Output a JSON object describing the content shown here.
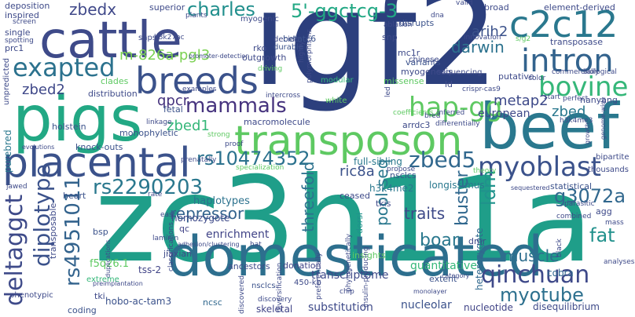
{
  "words": [
    {
      "id": "igf2",
      "text": "igf2",
      "color": "#2c3f7d"
    },
    {
      "id": "zc3h11a",
      "text": "zc3h11a",
      "color": "#1f9e89"
    },
    {
      "id": "domesticated",
      "text": "domesticated",
      "color": "#2d6f8e"
    },
    {
      "id": "beef",
      "text": "beef",
      "color": "#2a788e"
    },
    {
      "id": "pigs",
      "text": "pigs",
      "color": "#22a884"
    },
    {
      "id": "cattle",
      "text": "cattle",
      "color": "#3e4a89"
    },
    {
      "id": "transposon",
      "text": "transposon",
      "color": "#5ec962"
    },
    {
      "id": "placental",
      "text": "placental",
      "color": "#3b528b"
    },
    {
      "id": "breeds",
      "text": "breeds",
      "color": "#3b528b"
    },
    {
      "id": "c2c12",
      "text": "c2c12",
      "color": "#2a788e"
    },
    {
      "id": "intron",
      "text": "intron",
      "color": "#33638d"
    },
    {
      "id": "bovine",
      "text": "bovine",
      "color": "#35b779"
    },
    {
      "id": "myoblast",
      "text": "myoblast",
      "color": "#3b528b"
    },
    {
      "id": "qinchuan",
      "text": "qinchuan",
      "color": "#3e4989"
    },
    {
      "id": "myotube",
      "text": "myotube",
      "color": "#2d708e"
    },
    {
      "id": "exapted",
      "text": "exapted",
      "color": "#2c728e"
    },
    {
      "id": "mammals",
      "text": "mammals",
      "color": "#46337e"
    },
    {
      "id": "charles",
      "text": "charles",
      "color": "#218f8d"
    },
    {
      "id": "5ggctcg3",
      "text": "5'-ggctcg-3",
      "color": "#22a884"
    },
    {
      "id": "hapgg",
      "text": "hap-gg",
      "color": "#5ec962"
    },
    {
      "id": "rs10474352",
      "text": "rs10474352",
      "color": "#2c728e"
    },
    {
      "id": "rs2290203",
      "text": "rs2290203",
      "color": "#2a788e"
    },
    {
      "id": "zbed5",
      "text": "zbed5",
      "color": "#31688e"
    },
    {
      "id": "deltaggct",
      "text": "deltaggct",
      "color": "#3e4a89"
    },
    {
      "id": "diplotype",
      "text": "diplotype",
      "color": "#3b528b"
    },
    {
      "id": "rs4951011",
      "text": "rs4951011",
      "color": "#33638d"
    },
    {
      "id": "zbedx",
      "text": "zbedx",
      "color": "#3f4889"
    },
    {
      "id": "darwin",
      "text": "darwin",
      "color": "#2c728e"
    },
    {
      "id": "buster",
      "text": "buster",
      "color": "#31688e"
    },
    {
      "id": "ldm",
      "text": "ldm",
      "color": "#20928c"
    },
    {
      "id": "g3072a",
      "text": "g3072a",
      "color": "#31688e"
    },
    {
      "id": "fat",
      "text": "fat",
      "color": "#21918c"
    },
    {
      "id": "muscle",
      "text": "muscle",
      "color": "#2e6e8e"
    },
    {
      "id": "boar",
      "text": "boar",
      "color": "#2a788e"
    },
    {
      "id": "traits",
      "text": "traits",
      "color": "#3e4a89"
    },
    {
      "id": "repressor",
      "text": "repressor",
      "color": "#33638d"
    },
    {
      "id": "qpcr",
      "text": "qpcr",
      "color": "#46337e"
    },
    {
      "id": "zbed1",
      "text": "zbed1",
      "color": "#35b779"
    },
    {
      "id": "zbed2",
      "text": "zbed2",
      "color": "#3f4889"
    },
    {
      "id": "zbed",
      "text": "zbed",
      "color": "#2a788e"
    },
    {
      "id": "arih2",
      "text": "arih2",
      "color": "#3b528b"
    },
    {
      "id": "metap2",
      "text": "metap2",
      "color": "#3e4a89"
    },
    {
      "id": "ric8a",
      "text": "ric8a",
      "color": "#3b528b"
    },
    {
      "id": "poolseq",
      "text": "pool-seq",
      "color": "#2a788e"
    },
    {
      "id": "threefold",
      "text": "threefold",
      "color": "#2c728e"
    },
    {
      "id": "m826apgl3",
      "text": "m-826a-pgl3",
      "color": "#7ad151"
    },
    {
      "id": "european",
      "text": "european",
      "color": "#3e4989"
    },
    {
      "id": "enrichment",
      "text": "enrichment",
      "color": "#414487"
    },
    {
      "id": "haplotypes",
      "text": "haplotypes",
      "color": "#2c728e"
    },
    {
      "id": "transcriptome",
      "text": "transcriptome",
      "color": "#3e4a89"
    },
    {
      "id": "quantitative",
      "text": "quantitative",
      "color": "#35b779"
    },
    {
      "id": "substitution",
      "text": "substitution",
      "color": "#3e4a89"
    },
    {
      "id": "skeletal",
      "text": "skeletal",
      "color": "#414487"
    },
    {
      "id": "nucleolar",
      "text": "nucleolar",
      "color": "#3b528b"
    },
    {
      "id": "hoboactam3",
      "text": "hobo-ac-tam3",
      "color": "#3b528b"
    },
    {
      "id": "tss2",
      "text": "tss-2",
      "color": "#414487"
    },
    {
      "id": "f5q261",
      "text": "f5q26.1",
      "color": "#5ec962"
    },
    {
      "id": "homozygote",
      "text": "homozygote",
      "color": "#3e4a89"
    },
    {
      "id": "heterozygote",
      "text": "heterozygote",
      "color": "#31688e"
    },
    {
      "id": "longissimus",
      "text": "longissimus",
      "color": "#2a788e"
    },
    {
      "id": "fullsibling",
      "text": "full-sibling",
      "color": "#2a788e"
    },
    {
      "id": "h3k4me2",
      "text": "h3k4me2",
      "color": "#2a788e"
    },
    {
      "id": "nsclcs",
      "text": "nsclcs",
      "color": "#3b528b"
    },
    {
      "id": "disequilibrium",
      "text": "disequilibrium",
      "color": "#3e4a89"
    },
    {
      "id": "nucleotide",
      "text": "nucleotide",
      "color": "#414487"
    },
    {
      "id": "cobra",
      "text": "cobra",
      "color": "#31688e"
    },
    {
      "id": "extent",
      "text": "extent",
      "color": "#3b528b"
    },
    {
      "id": "jiaxian",
      "text": "jiaxian",
      "color": "#3e4a89"
    },
    {
      "id": "ancestors",
      "text": "ancestors",
      "color": "#3e4a89"
    },
    {
      "id": "donation",
      "text": "donation",
      "color": "#414487"
    },
    {
      "id": "ncsc",
      "text": "ncsc",
      "color": "#31688e"
    },
    {
      "id": "tki",
      "text": "tki",
      "color": "#3e4989"
    },
    {
      "id": "coding",
      "text": "coding",
      "color": "#3b528b"
    },
    {
      "id": "tkis",
      "text": "tkis",
      "color": "#3e4a89"
    },
    {
      "id": "statistical",
      "text": "statistical",
      "color": "#3b528b"
    },
    {
      "id": "agg",
      "text": "agg",
      "color": "#3e4a89"
    },
    {
      "id": "insights",
      "text": "insights",
      "color": "#5ec962"
    },
    {
      "id": "dmr",
      "text": "dmr",
      "color": "#3e4a89"
    },
    {
      "id": "ceased",
      "text": "ceased",
      "color": "#3e4a89"
    },
    {
      "id": "dorsi",
      "text": "dorsi",
      "color": "#21918c"
    },
    {
      "id": "qc",
      "text": "qc",
      "color": "#414487"
    },
    {
      "id": "bsp",
      "text": "bsp",
      "color": "#3b528b"
    },
    {
      "id": "heart",
      "text": "heart",
      "color": "#3b528b"
    },
    {
      "id": "transposable",
      "text": "transposable",
      "color": "#3e4a89"
    },
    {
      "id": "purebred",
      "text": "purebred",
      "color": "#2a788e"
    },
    {
      "id": "holstein",
      "text": "holstein",
      "color": "#3b528b"
    },
    {
      "id": "monophyletic",
      "text": "monophyletic",
      "color": "#3b528b"
    },
    {
      "id": "macromolecule",
      "text": "macromolecule",
      "color": "#3e4989"
    },
    {
      "id": "rko",
      "text": "rko",
      "color": "#3e4a89"
    },
    {
      "id": "outgrowth",
      "text": "outgrowth",
      "color": "#3e4989"
    },
    {
      "id": "durable",
      "text": "durable",
      "color": "#3b528b"
    },
    {
      "id": "decide",
      "text": "decide",
      "color": "#3e4a89"
    },
    {
      "id": "distribution",
      "text": "distribution",
      "color": "#3e4a89"
    },
    {
      "id": "fetal",
      "text": "fetal",
      "color": "#3b528b"
    },
    {
      "id": "clades",
      "text": "clades",
      "color": "#5ec962"
    },
    {
      "id": "arrdc3",
      "text": "arrdc3",
      "color": "#3e4a89"
    },
    {
      "id": "ld",
      "text": "ld",
      "color": "#3e4a89"
    },
    {
      "id": "missense",
      "text": "missense",
      "color": "#5ec962"
    },
    {
      "id": "variants",
      "text": "variants",
      "color": "#3b528b"
    },
    {
      "id": "myogenesis",
      "text": "myogenesis",
      "color": "#3e4a89"
    },
    {
      "id": "mc1r",
      "text": "mc1r",
      "color": "#3e4a89"
    },
    {
      "id": "snp",
      "text": "snp",
      "color": "#3e4a89"
    },
    {
      "id": "disrupts",
      "text": "disrupts",
      "color": "#3b528b"
    },
    {
      "id": "betatc6",
      "text": "betatc6",
      "color": "#3b528b"
    },
    {
      "id": "superior",
      "text": "superior",
      "color": "#3e4a89"
    },
    {
      "id": "myogenic",
      "text": "myogenic",
      "color": "#3e4a89"
    },
    {
      "id": "broad",
      "text": "broad",
      "color": "#3e4a89"
    },
    {
      "id": "elementderived",
      "text": "element-derived",
      "color": "#3e4a89"
    },
    {
      "id": "transposase",
      "text": "transposase",
      "color": "#3e4a89"
    },
    {
      "id": "putative",
      "text": "putative",
      "color": "#3e4a89"
    },
    {
      "id": "nanyang",
      "text": "nanyang",
      "color": "#3e4a89"
    },
    {
      "id": "deposition",
      "text": "deposition",
      "color": "#3e4a89"
    },
    {
      "id": "inspired",
      "text": "inspired",
      "color": "#3e4a89"
    },
    {
      "id": "single",
      "text": "single",
      "color": "#3e4a89"
    },
    {
      "id": "prc1",
      "text": "prc1",
      "color": "#3e4a89"
    },
    {
      "id": "unpredicted",
      "text": "unpredicted",
      "color": "#3e4a89"
    },
    {
      "id": "knockouts",
      "text": "knock-outs",
      "color": "#3b528b"
    },
    {
      "id": "phenotypic",
      "text": "phenotypic",
      "color": "#3e4a89"
    },
    {
      "id": "extreme",
      "text": "extreme",
      "color": "#35b779"
    },
    {
      "id": "s450kb",
      "text": "450-kb",
      "color": "#3e4a89"
    },
    {
      "id": "nsclcs2",
      "text": "nsclcs",
      "color": "#3b528b"
    },
    {
      "id": "sequencing",
      "text": "sequencing",
      "color": "#3e4a89"
    },
    {
      "id": "chinese",
      "text": "chinese",
      "color": "#3e4a89"
    },
    {
      "id": "modular",
      "text": "modular",
      "color": "#35b779"
    },
    {
      "id": "white",
      "text": "white",
      "color": "#5ec962"
    },
    {
      "id": "bipartite",
      "text": "bipartite",
      "color": "#3e4a89"
    },
    {
      "id": "thousands",
      "text": "thousands",
      "color": "#3e4a89"
    },
    {
      "id": "mass",
      "text": "mass",
      "color": "#3e4a89"
    },
    {
      "id": "analyses",
      "text": "analyses",
      "color": "#3e4a89"
    },
    {
      "id": "black",
      "text": "black",
      "color": "#3e4a89"
    },
    {
      "id": "combined",
      "text": "combined",
      "color": "#3e4a89"
    },
    {
      "id": "parasitic",
      "text": "parasitic",
      "color": "#3e4a89"
    },
    {
      "id": "h3k4me3",
      "text": "h3k4me3",
      "color": "#3e4a89"
    },
    {
      "id": "proof",
      "text": "proof",
      "color": "#3e4a89"
    },
    {
      "id": "strong",
      "text": "strong",
      "color": "#5ec962"
    },
    {
      "id": "specialization",
      "text": "specialization",
      "color": "#5ec962"
    },
    {
      "id": "propose",
      "text": "propose",
      "color": "#3e4a89"
    },
    {
      "id": "jawed",
      "text": "jawed",
      "color": "#3e4a89"
    },
    {
      "id": "rate",
      "text": "rate",
      "color": "#3e4a89"
    },
    {
      "id": "east",
      "text": "east",
      "color": "#3e4a89"
    },
    {
      "id": "hat",
      "text": "hat",
      "color": "#3e4a89"
    },
    {
      "id": "chip",
      "text": "chip",
      "color": "#3e4a89"
    },
    {
      "id": "discovered",
      "text": "discovered",
      "color": "#3e4a89"
    },
    {
      "id": "crispr",
      "text": "crispr-cas9",
      "color": "#3e4a89"
    },
    {
      "id": "s_g2",
      "text": "s/g2",
      "color": "#5ec962"
    },
    {
      "id": "led",
      "text": "led",
      "color": "#3e4a89"
    },
    {
      "id": "diversification",
      "text": "diversification",
      "color": "#3e4a89"
    },
    {
      "id": "preferentially",
      "text": "preferentially",
      "color": "#3e4a89"
    },
    {
      "id": "insulin",
      "text": "insulin-producing",
      "color": "#3e4a89"
    },
    {
      "id": "prenatally",
      "text": "prenatally",
      "color": "#3e4a89"
    },
    {
      "id": "laminin",
      "text": "laminin",
      "color": "#3e4a89"
    },
    {
      "id": "classifications",
      "text": "classifications",
      "color": "#3e4a89"
    },
    {
      "id": "snps",
      "text": "snps",
      "color": "#3e4a89"
    },
    {
      "id": "h3k27ac",
      "text": "h3k27ac",
      "color": "#3e4a89"
    },
    {
      "id": "valid",
      "text": "valid",
      "color": "#3e4a89"
    },
    {
      "id": "plants",
      "text": "plants",
      "color": "#3e4a89"
    },
    {
      "id": "dna",
      "text": "dna",
      "color": "#3e4a89"
    },
    {
      "id": "ablation",
      "text": "ablation",
      "color": "#3e4a89"
    },
    {
      "id": "discovery",
      "text": "discovery",
      "color": "#3e4a89"
    },
    {
      "id": "driving",
      "text": "driving",
      "color": "#5ec962"
    },
    {
      "id": "highly",
      "text": "highly",
      "color": "#3e4a89"
    },
    {
      "id": "intercross",
      "text": "intercross",
      "color": "#3e4a89"
    },
    {
      "id": "differentially",
      "text": "differentially",
      "color": "#3e4a89"
    },
    {
      "id": "coefficients",
      "text": "coefficients",
      "color": "#5ec962"
    },
    {
      "id": "linkage",
      "text": "linkage",
      "color": "#3e4a89"
    },
    {
      "id": "examples",
      "text": "examples",
      "color": "#3e4a89"
    },
    {
      "id": "spotting",
      "text": "spotting",
      "color": "#3e4a89"
    },
    {
      "id": "screen",
      "text": "screen",
      "color": "#3e4a89"
    },
    {
      "id": "biological",
      "text": "biological",
      "color": "#3e4a89"
    },
    {
      "id": "commercially",
      "text": "commercially",
      "color": "#3e4a89"
    },
    {
      "id": "phylogenetically",
      "text": "phylogenetically",
      "color": "#3e4a89"
    },
    {
      "id": "bred",
      "text": "bred",
      "color": "#3e4a89"
    },
    {
      "id": "perfect",
      "text": "perfect",
      "color": "#3e4a89"
    },
    {
      "id": "start",
      "text": "start",
      "color": "#3e4a89"
    },
    {
      "id": "color",
      "text": "color",
      "color": "#3e4a89"
    },
    {
      "id": "innovation",
      "text": "innovation",
      "color": "#3e4a89"
    },
    {
      "id": "theory",
      "text": "theory",
      "color": "#5ec962"
    },
    {
      "id": "inferred",
      "text": "inferred",
      "color": "#3e4a89"
    },
    {
      "id": "adhesion",
      "text": "adhesion/clustering",
      "color": "#3e4a89"
    },
    {
      "id": "promoter",
      "text": "promoter-detection",
      "color": "#3e4a89"
    },
    {
      "id": "duplications",
      "text": "duplications",
      "color": "#3e4a89"
    },
    {
      "id": "polymorphisms",
      "text": "polymorphisms",
      "color": "#3e4a89"
    },
    {
      "id": "category",
      "text": "category",
      "color": "#3e4a89"
    },
    {
      "id": "monolayer",
      "text": "monolayer",
      "color": "#3e4a89"
    },
    {
      "id": "sequestered",
      "text": "sequestered",
      "color": "#3e4a89"
    },
    {
      "id": "preimplantation",
      "text": "preimplantation",
      "color": "#3e4a89"
    },
    {
      "id": "evolutions",
      "text": "evolutions",
      "color": "#3e4a89"
    },
    {
      "id": "genomewide",
      "text": "genome-wide",
      "color": "#3e4a89"
    },
    {
      "id": "growth",
      "text": "growth",
      "color": "#3e4a89"
    }
  ]
}
